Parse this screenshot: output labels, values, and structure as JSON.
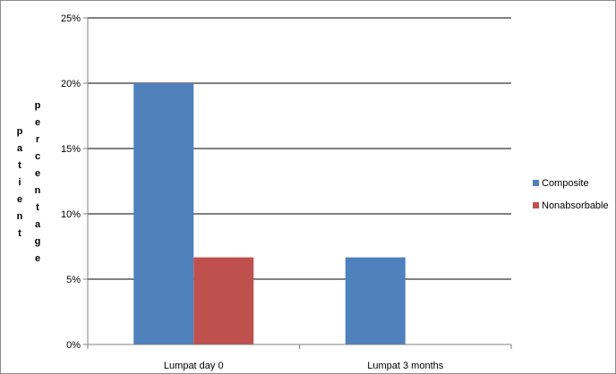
{
  "chart_data": {
    "type": "bar",
    "categories": [
      "Lumpat day 0",
      "Lumpat 3 months"
    ],
    "series": [
      {
        "name": "Composite",
        "color": "#4f81bd",
        "values": [
          20,
          6.67
        ]
      },
      {
        "name": "Nonabsorbable",
        "color": "#c0504d",
        "values": [
          6.67,
          0
        ]
      }
    ],
    "ylim": [
      0,
      25
    ],
    "yticks": [
      0,
      5,
      10,
      15,
      20,
      25
    ],
    "ytick_labels": [
      "0%",
      "5%",
      "10%",
      "15%",
      "20%",
      "25%"
    ],
    "ylabel_lines": [
      "patient",
      "percentage"
    ],
    "xlabel": "",
    "grid": true,
    "legend_position": "right"
  }
}
